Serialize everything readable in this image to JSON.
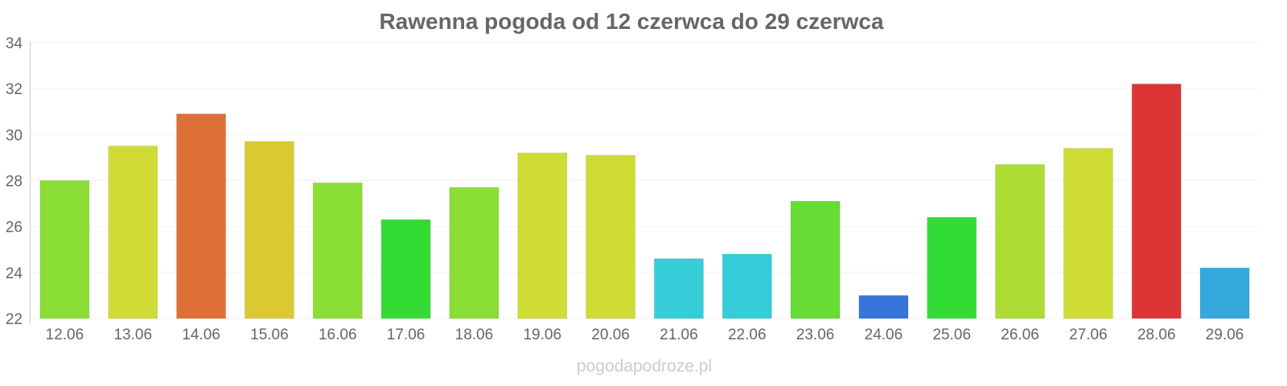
{
  "chart_data": {
    "type": "bar",
    "title": "Rawenna pogoda od 12 czerwca do 29 czerwca",
    "xlabel": "",
    "ylabel": "",
    "ylim": [
      22,
      34
    ],
    "yticks": [
      "22",
      "24",
      "26",
      "28",
      "30",
      "32",
      "34"
    ],
    "grid": true,
    "categories": [
      "12.06",
      "13.06",
      "14.06",
      "15.06",
      "16.06",
      "17.06",
      "18.06",
      "19.06",
      "20.06",
      "21.06",
      "22.06",
      "23.06",
      "24.06",
      "25.06",
      "26.06",
      "27.06",
      "28.06",
      "29.06"
    ],
    "values": [
      28.0,
      29.5,
      30.9,
      29.7,
      27.9,
      26.3,
      27.7,
      29.2,
      29.1,
      24.6,
      24.8,
      27.1,
      23.0,
      26.4,
      28.7,
      29.4,
      32.2,
      24.2
    ],
    "colors": [
      "#8ade35",
      "#d0dc35",
      "#df7035",
      "#dcc832",
      "#8ade35",
      "#33dc35",
      "#8ade35",
      "#cfdc35",
      "#cfdc35",
      "#35cdd8",
      "#35cdd8",
      "#66dc35",
      "#3575dc",
      "#33dc35",
      "#addc35",
      "#cfdc35",
      "#dc3535",
      "#35a8dc"
    ]
  },
  "watermark": "pogodapodroze.pl"
}
